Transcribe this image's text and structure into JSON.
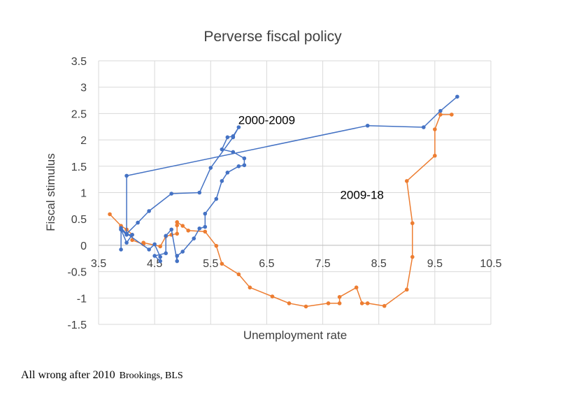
{
  "chart_data": {
    "type": "line",
    "title": "Perverse fiscal policy",
    "xlabel": "Unemployment rate",
    "ylabel": "Fiscal stimulus",
    "xlim": [
      3.5,
      10.5
    ],
    "ylim": [
      -1.5,
      3.5
    ],
    "xticks": [
      3.5,
      4.5,
      5.5,
      6.5,
      7.5,
      8.5,
      9.5,
      10.5
    ],
    "xtick_labels": [
      "3.5",
      "4.5",
      "5.5",
      "6.5",
      "7.5",
      "8.5",
      "9.5",
      "10.5"
    ],
    "yticks": [
      3.5,
      3,
      2.5,
      2,
      1.5,
      1,
      0.5,
      0,
      -0.5,
      -1,
      -1.5
    ],
    "ytick_labels": [
      "3.5",
      "3",
      "2.5",
      "2",
      "1.5",
      "1",
      "0.5",
      "0",
      "-0.5",
      "-1",
      "-1.5"
    ],
    "grid": true,
    "legend": "none",
    "annotations": [
      {
        "text": "2000-2009",
        "x": 6.5,
        "y": 2.3
      },
      {
        "text": "2009-18",
        "x": 8.2,
        "y": 0.88
      }
    ],
    "series": [
      {
        "color": "#4472C4",
        "x": [
          3.9,
          3.9,
          4.0,
          4.1,
          4.0,
          3.9,
          4.4,
          4.5,
          4.6,
          4.6,
          4.5,
          4.7,
          4.7,
          4.8,
          4.9,
          4.9,
          5.0,
          5.2,
          5.3,
          5.4,
          5.4,
          5.6,
          5.7,
          5.8,
          6.0,
          6.1,
          6.1,
          5.9,
          5.7,
          5.8,
          5.9,
          6.0,
          5.9,
          5.5,
          5.3,
          4.8,
          4.4,
          4.2,
          4.0,
          3.9,
          4.0,
          4.0,
          8.3,
          9.3,
          9.6,
          9.9
        ],
        "y": [
          -0.08,
          0.3,
          0.05,
          0.2,
          0.2,
          0.3,
          -0.08,
          0.02,
          -0.22,
          -0.3,
          -0.2,
          -0.15,
          0.18,
          0.3,
          -0.3,
          -0.2,
          -0.12,
          0.13,
          0.32,
          0.35,
          0.6,
          0.88,
          1.22,
          1.38,
          1.5,
          1.52,
          1.65,
          1.77,
          1.82,
          2.05,
          2.07,
          2.24,
          2.05,
          1.47,
          1.0,
          0.98,
          0.65,
          0.43,
          0.22,
          0.33,
          0.22,
          1.32,
          2.27,
          2.24,
          2.55,
          2.82
        ]
      },
      {
        "color": "#ED7D31",
        "x": [
          3.7,
          3.9,
          4.0,
          4.1,
          4.1,
          4.3,
          4.3,
          4.6,
          4.7,
          4.8,
          4.9,
          4.9,
          4.9,
          5.0,
          5.1,
          5.4,
          5.6,
          5.7,
          6.0,
          6.2,
          6.6,
          6.9,
          7.2,
          7.6,
          7.8,
          7.8,
          8.1,
          8.2,
          8.3,
          8.6,
          9.0,
          9.1,
          9.1,
          9.0,
          9.5,
          9.5,
          9.6,
          9.8
        ],
        "y": [
          0.59,
          0.37,
          0.3,
          0.2,
          0.1,
          0.02,
          0.05,
          -0.02,
          0.17,
          0.2,
          0.22,
          0.38,
          0.44,
          0.37,
          0.28,
          0.26,
          -0.01,
          -0.35,
          -0.55,
          -0.8,
          -0.97,
          -1.1,
          -1.16,
          -1.1,
          -1.1,
          -0.98,
          -0.8,
          -1.1,
          -1.1,
          -1.15,
          -0.84,
          -0.22,
          0.42,
          1.22,
          1.7,
          2.2,
          2.48,
          2.48
        ]
      }
    ]
  },
  "caption": {
    "main": "All wrong after 2010",
    "source": "Brookings, BLS"
  }
}
